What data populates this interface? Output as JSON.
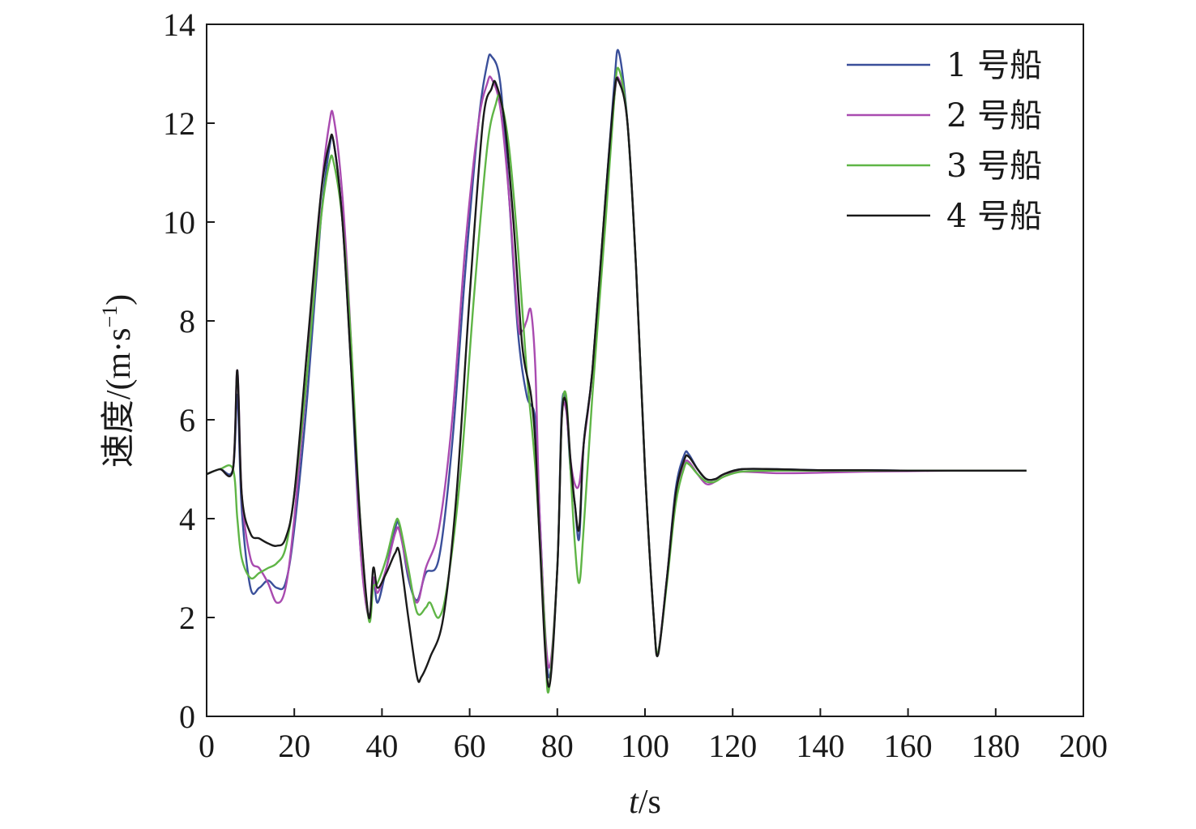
{
  "chart_data": {
    "type": "line",
    "title": "",
    "xlabel_italic": "t",
    "xlabel_unit": "/s",
    "ylabel_main": "速度/(m·s",
    "ylabel_sup": "−1",
    "ylabel_close": ")",
    "xlim": [
      0,
      200
    ],
    "ylim": [
      0,
      14
    ],
    "xticks": [
      0,
      20,
      40,
      60,
      80,
      100,
      120,
      140,
      160,
      180,
      200
    ],
    "yticks": [
      0,
      2,
      4,
      6,
      8,
      10,
      12,
      14
    ],
    "xtick_labels": [
      "0",
      "20",
      "40",
      "60",
      "80",
      "100",
      "120",
      "140",
      "160",
      "180",
      "200"
    ],
    "ytick_labels": [
      "0",
      "2",
      "4",
      "6",
      "8",
      "10",
      "12",
      "14"
    ],
    "grid": false,
    "legend_position": "top-right",
    "series": [
      {
        "name": "1 号船",
        "color": "#3a4f9a",
        "points": [
          [
            0,
            4.9
          ],
          [
            3,
            5.0
          ],
          [
            6,
            5.0
          ],
          [
            7,
            6.5
          ],
          [
            8,
            4.2
          ],
          [
            10,
            2.6
          ],
          [
            12,
            2.6
          ],
          [
            14,
            2.75
          ],
          [
            16,
            2.6
          ],
          [
            18,
            2.7
          ],
          [
            20,
            3.8
          ],
          [
            23,
            6.5
          ],
          [
            26,
            10.0
          ],
          [
            28,
            11.5
          ],
          [
            29,
            11.6
          ],
          [
            31,
            10.0
          ],
          [
            33,
            7.0
          ],
          [
            35,
            3.5
          ],
          [
            37,
            2.0
          ],
          [
            38,
            2.8
          ],
          [
            39,
            2.3
          ],
          [
            41,
            3.0
          ],
          [
            43,
            3.8
          ],
          [
            44,
            3.85
          ],
          [
            46,
            2.8
          ],
          [
            48,
            2.35
          ],
          [
            50,
            2.9
          ],
          [
            53,
            3.2
          ],
          [
            56,
            5.5
          ],
          [
            59,
            9.0
          ],
          [
            62,
            12.0
          ],
          [
            64,
            13.2
          ],
          [
            65,
            13.35
          ],
          [
            67,
            12.8
          ],
          [
            69,
            10.5
          ],
          [
            71,
            7.8
          ],
          [
            73,
            6.5
          ],
          [
            75,
            6.0
          ],
          [
            76,
            4.0
          ],
          [
            78,
            0.8
          ],
          [
            80,
            3.0
          ],
          [
            81,
            6.2
          ],
          [
            82,
            6.3
          ],
          [
            83,
            5.0
          ],
          [
            84,
            4.3
          ],
          [
            85,
            3.6
          ],
          [
            86,
            5.5
          ],
          [
            88,
            7.0
          ],
          [
            91,
            10.5
          ],
          [
            93,
            12.8
          ],
          [
            94,
            13.45
          ],
          [
            96,
            12.0
          ],
          [
            98,
            9.0
          ],
          [
            100,
            5.0
          ],
          [
            102,
            2.0
          ],
          [
            103,
            1.3
          ],
          [
            105,
            2.8
          ],
          [
            107,
            4.6
          ],
          [
            109,
            5.3
          ],
          [
            110,
            5.3
          ],
          [
            112,
            5.0
          ],
          [
            114,
            4.8
          ],
          [
            116,
            4.8
          ],
          [
            118,
            4.9
          ],
          [
            122,
            5.0
          ],
          [
            130,
            5.0
          ],
          [
            140,
            4.98
          ],
          [
            150,
            4.98
          ],
          [
            160,
            4.97
          ],
          [
            170,
            4.97
          ],
          [
            180,
            4.97
          ],
          [
            187,
            4.97
          ]
        ]
      },
      {
        "name": "2 号船",
        "color": "#a94bb0",
        "points": [
          [
            0,
            4.9
          ],
          [
            3,
            5.0
          ],
          [
            6,
            5.0
          ],
          [
            7,
            7.0
          ],
          [
            8,
            4.5
          ],
          [
            10,
            3.2
          ],
          [
            12,
            3.0
          ],
          [
            14,
            2.7
          ],
          [
            16,
            2.3
          ],
          [
            18,
            2.6
          ],
          [
            20,
            4.0
          ],
          [
            23,
            7.0
          ],
          [
            26,
            10.5
          ],
          [
            28,
            12.0
          ],
          [
            29,
            12.1
          ],
          [
            31,
            10.5
          ],
          [
            33,
            7.5
          ],
          [
            35,
            3.5
          ],
          [
            37,
            2.0
          ],
          [
            38,
            2.8
          ],
          [
            39,
            2.5
          ],
          [
            41,
            3.0
          ],
          [
            43,
            3.7
          ],
          [
            44,
            3.75
          ],
          [
            46,
            2.9
          ],
          [
            48,
            2.3
          ],
          [
            50,
            3.0
          ],
          [
            53,
            3.8
          ],
          [
            56,
            6.0
          ],
          [
            59,
            9.5
          ],
          [
            62,
            12.0
          ],
          [
            64,
            12.8
          ],
          [
            65,
            12.9
          ],
          [
            67,
            12.3
          ],
          [
            69,
            10.5
          ],
          [
            71,
            8.0
          ],
          [
            72,
            7.8
          ],
          [
            73,
            8.0
          ],
          [
            74,
            8.2
          ],
          [
            75,
            7.0
          ],
          [
            76,
            4.0
          ],
          [
            78,
            1.0
          ],
          [
            80,
            3.0
          ],
          [
            81,
            6.0
          ],
          [
            82,
            6.2
          ],
          [
            83,
            5.2
          ],
          [
            84,
            4.7
          ],
          [
            85,
            4.7
          ],
          [
            86,
            5.5
          ],
          [
            88,
            7.0
          ],
          [
            91,
            10.3
          ],
          [
            93,
            12.5
          ],
          [
            94,
            12.9
          ],
          [
            96,
            12.0
          ],
          [
            98,
            9.0
          ],
          [
            100,
            5.0
          ],
          [
            102,
            2.0
          ],
          [
            103,
            1.3
          ],
          [
            105,
            2.8
          ],
          [
            107,
            4.5
          ],
          [
            109,
            5.1
          ],
          [
            110,
            5.15
          ],
          [
            112,
            4.9
          ],
          [
            114,
            4.7
          ],
          [
            116,
            4.75
          ],
          [
            118,
            4.9
          ],
          [
            122,
            4.95
          ],
          [
            130,
            4.92
          ],
          [
            140,
            4.93
          ],
          [
            150,
            4.95
          ],
          [
            160,
            4.96
          ],
          [
            170,
            4.97
          ],
          [
            180,
            4.97
          ],
          [
            187,
            4.97
          ]
        ]
      },
      {
        "name": "3 号船",
        "color": "#5fb546",
        "points": [
          [
            0,
            4.9
          ],
          [
            3,
            5.0
          ],
          [
            6,
            5.0
          ],
          [
            7,
            4.0
          ],
          [
            8,
            3.2
          ],
          [
            10,
            2.8
          ],
          [
            12,
            2.9
          ],
          [
            14,
            3.0
          ],
          [
            16,
            3.1
          ],
          [
            18,
            3.4
          ],
          [
            20,
            4.5
          ],
          [
            23,
            7.0
          ],
          [
            26,
            10.0
          ],
          [
            28,
            11.2
          ],
          [
            29,
            11.2
          ],
          [
            31,
            10.0
          ],
          [
            33,
            7.5
          ],
          [
            35,
            4.0
          ],
          [
            37,
            1.95
          ],
          [
            38,
            2.6
          ],
          [
            39,
            2.7
          ],
          [
            41,
            3.2
          ],
          [
            43,
            3.9
          ],
          [
            44,
            3.9
          ],
          [
            46,
            3.0
          ],
          [
            48,
            2.1
          ],
          [
            50,
            2.2
          ],
          [
            51,
            2.3
          ],
          [
            53,
            2.0
          ],
          [
            55,
            2.7
          ],
          [
            58,
            5.0
          ],
          [
            61,
            8.5
          ],
          [
            64,
            11.5
          ],
          [
            66,
            12.4
          ],
          [
            67,
            12.5
          ],
          [
            69,
            11.5
          ],
          [
            71,
            9.5
          ],
          [
            73,
            7.0
          ],
          [
            75,
            5.0
          ],
          [
            77,
            2.0
          ],
          [
            78,
            0.5
          ],
          [
            80,
            3.0
          ],
          [
            81,
            6.0
          ],
          [
            82,
            6.5
          ],
          [
            83,
            5.0
          ],
          [
            84,
            3.5
          ],
          [
            85,
            2.7
          ],
          [
            86,
            3.8
          ],
          [
            88,
            6.5
          ],
          [
            91,
            10.0
          ],
          [
            93,
            12.5
          ],
          [
            94,
            13.1
          ],
          [
            96,
            12.0
          ],
          [
            98,
            9.0
          ],
          [
            100,
            5.0
          ],
          [
            102,
            2.0
          ],
          [
            103,
            1.3
          ],
          [
            105,
            2.7
          ],
          [
            107,
            4.3
          ],
          [
            109,
            5.05
          ],
          [
            110,
            5.1
          ],
          [
            112,
            4.9
          ],
          [
            114,
            4.75
          ],
          [
            116,
            4.75
          ],
          [
            118,
            4.85
          ],
          [
            122,
            4.95
          ],
          [
            130,
            4.97
          ],
          [
            140,
            4.97
          ],
          [
            150,
            4.97
          ],
          [
            160,
            4.97
          ],
          [
            170,
            4.97
          ],
          [
            180,
            4.97
          ],
          [
            187,
            4.97
          ]
        ]
      },
      {
        "name": "4 号船",
        "color": "#1a1a1a",
        "points": [
          [
            0,
            4.9
          ],
          [
            3,
            5.0
          ],
          [
            6,
            5.0
          ],
          [
            7,
            7.0
          ],
          [
            8,
            4.5
          ],
          [
            10,
            3.7
          ],
          [
            12,
            3.6
          ],
          [
            14,
            3.5
          ],
          [
            16,
            3.45
          ],
          [
            18,
            3.6
          ],
          [
            20,
            4.5
          ],
          [
            23,
            7.5
          ],
          [
            26,
            10.5
          ],
          [
            28,
            11.6
          ],
          [
            29,
            11.6
          ],
          [
            31,
            10.0
          ],
          [
            33,
            7.0
          ],
          [
            35,
            4.0
          ],
          [
            37,
            2.0
          ],
          [
            38,
            3.0
          ],
          [
            39,
            2.6
          ],
          [
            41,
            2.9
          ],
          [
            43,
            3.3
          ],
          [
            44,
            3.3
          ],
          [
            46,
            2.0
          ],
          [
            48,
            0.8
          ],
          [
            49,
            0.8
          ],
          [
            51,
            1.2
          ],
          [
            54,
            2.0
          ],
          [
            57,
            4.5
          ],
          [
            60,
            8.5
          ],
          [
            63,
            12.0
          ],
          [
            65,
            12.7
          ],
          [
            66,
            12.8
          ],
          [
            68,
            12.0
          ],
          [
            70,
            10.0
          ],
          [
            72,
            7.5
          ],
          [
            74,
            6.5
          ],
          [
            75,
            5.5
          ],
          [
            76,
            3.5
          ],
          [
            78,
            0.6
          ],
          [
            80,
            3.0
          ],
          [
            81,
            6.0
          ],
          [
            82,
            6.35
          ],
          [
            83,
            5.2
          ],
          [
            84,
            4.3
          ],
          [
            85,
            3.8
          ],
          [
            86,
            5.5
          ],
          [
            88,
            7.0
          ],
          [
            91,
            10.5
          ],
          [
            93,
            12.6
          ],
          [
            94,
            12.85
          ],
          [
            96,
            12.0
          ],
          [
            98,
            9.0
          ],
          [
            100,
            5.0
          ],
          [
            102,
            2.0
          ],
          [
            103,
            1.25
          ],
          [
            105,
            2.8
          ],
          [
            107,
            4.5
          ],
          [
            109,
            5.2
          ],
          [
            110,
            5.25
          ],
          [
            112,
            5.0
          ],
          [
            114,
            4.8
          ],
          [
            116,
            4.8
          ],
          [
            118,
            4.9
          ],
          [
            122,
            5.0
          ],
          [
            130,
            5.0
          ],
          [
            140,
            4.98
          ],
          [
            150,
            4.98
          ],
          [
            160,
            4.97
          ],
          [
            170,
            4.97
          ],
          [
            180,
            4.97
          ],
          [
            187,
            4.97
          ]
        ]
      }
    ]
  }
}
